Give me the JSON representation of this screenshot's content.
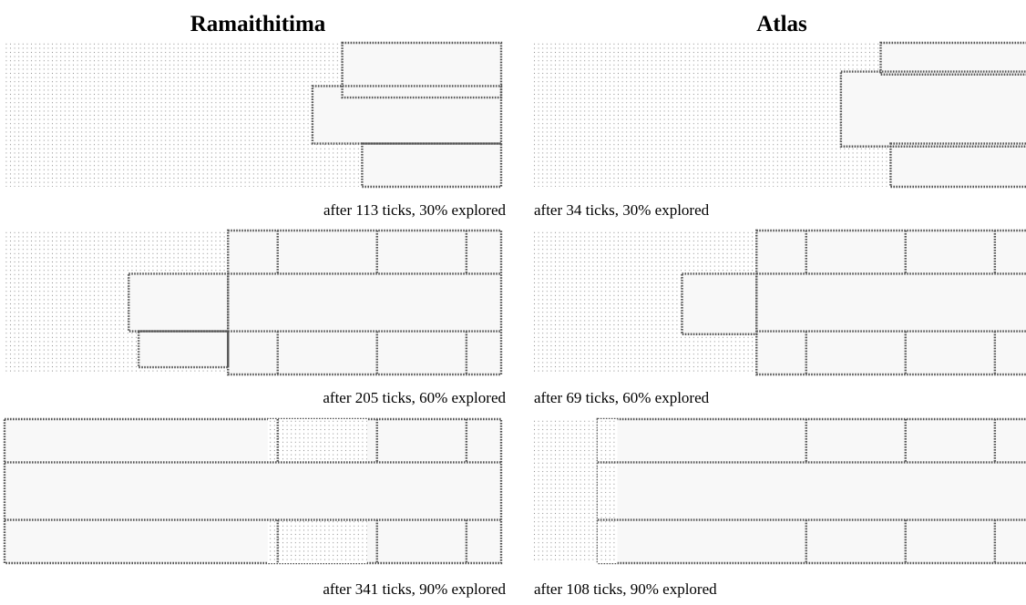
{
  "columns": [
    {
      "title": "Ramaithitima",
      "panels": [
        {
          "caption": "after 113 ticks, 30% explored"
        },
        {
          "caption": "after 205 ticks, 60% explored"
        },
        {
          "caption": "after 341 ticks, 90% explored"
        }
      ]
    },
    {
      "title": "Atlas",
      "panels": [
        {
          "caption": "after 34 ticks, 30% explored"
        },
        {
          "caption": "after 69 ticks, 60% explored"
        },
        {
          "caption": "after 108 ticks, 90% explored"
        }
      ]
    }
  ]
}
